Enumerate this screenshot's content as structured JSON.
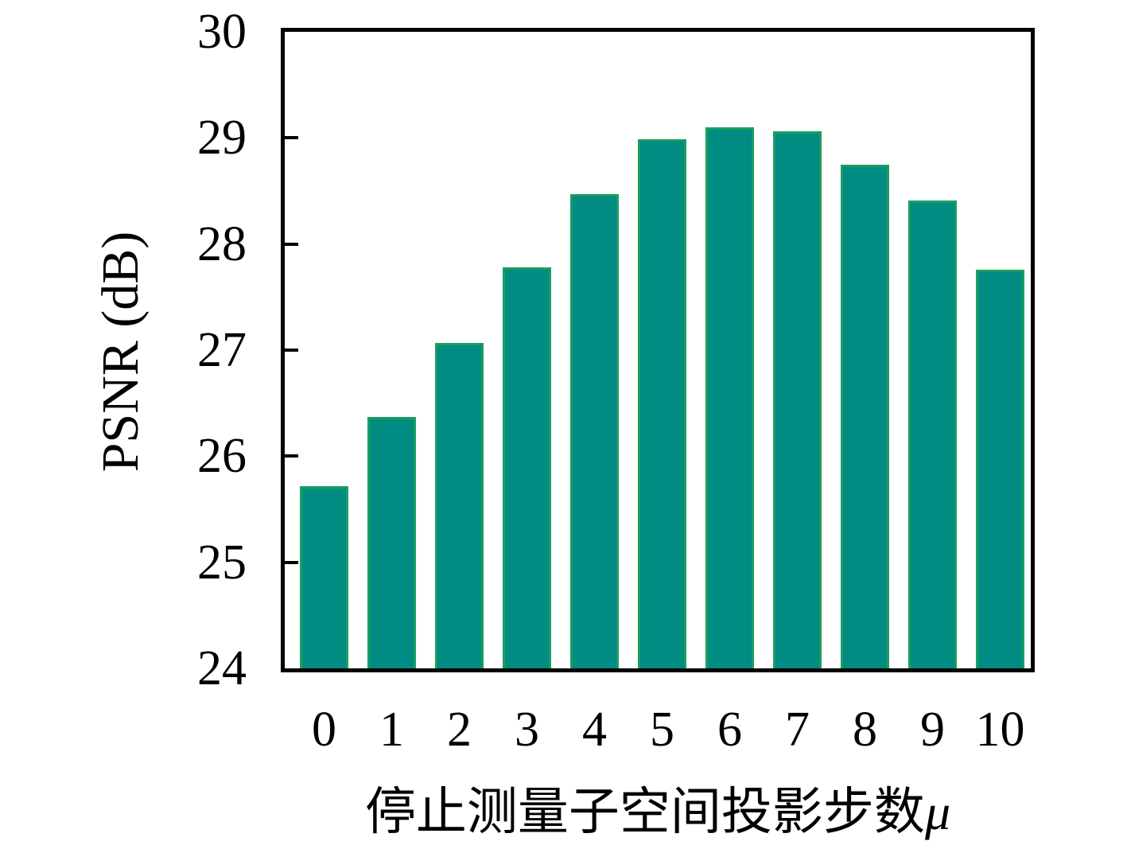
{
  "chart_data": {
    "type": "bar",
    "title": "",
    "xlabel": "停止测量子空间投影步数μ",
    "xlabel_main": "停止测量子空间投影步数",
    "xlabel_symbol": "μ",
    "ylabel": "PSNR (dB)",
    "categories": [
      "0",
      "1",
      "2",
      "3",
      "4",
      "5",
      "6",
      "7",
      "8",
      "9",
      "10"
    ],
    "values": [
      25.72,
      26.37,
      27.07,
      27.78,
      28.47,
      28.99,
      29.1,
      29.06,
      28.75,
      28.41,
      27.76
    ],
    "ylim": [
      24,
      30
    ],
    "yticks": [
      24,
      25,
      26,
      27,
      28,
      29,
      30
    ],
    "grid": false,
    "legend": null,
    "bar_color": "#008b83",
    "bar_edge_color": "#1a9e60",
    "frame_color": "#000000",
    "text_color": "#000000"
  }
}
